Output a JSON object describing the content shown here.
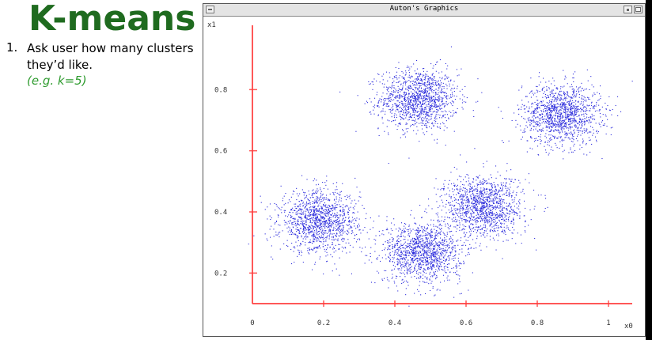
{
  "slide": {
    "title": "K-means",
    "step_number": "1.",
    "step_text": "Ask user how many clusters they’d like.",
    "step_example": "(e.g. k=5)"
  },
  "window": {
    "title": "Auton's Graphics"
  },
  "colors": {
    "title_green": "#1f6b1f",
    "example_green": "#2e9b2e",
    "axis_red": "#ff3b3b",
    "point_blue": "#2b2bdc"
  },
  "icons": [
    "window-menu-icon",
    "minimize-icon",
    "maximize-icon"
  ],
  "chart_data": {
    "type": "scatter",
    "xlabel": "x0",
    "ylabel": "x1",
    "xlim": [
      0,
      1
    ],
    "ylim": [
      0.1,
      1
    ],
    "x_ticks": [
      0,
      0.2,
      0.4,
      0.6,
      0.8,
      1
    ],
    "x_tick_labels": [
      "0",
      "0.2",
      "0.4",
      "0.6",
      "0.8",
      "1"
    ],
    "y_ticks": [
      0.2,
      0.4,
      0.6,
      0.8
    ],
    "y_tick_labels": [
      "0.2",
      "0.4",
      "0.6",
      "0.8"
    ],
    "grid": false,
    "series": [
      {
        "center": [
          0.48,
          0.77
        ],
        "spread": [
          0.055,
          0.05
        ],
        "n": 1300
      },
      {
        "center": [
          0.88,
          0.72
        ],
        "spread": [
          0.055,
          0.05
        ],
        "n": 1300
      },
      {
        "center": [
          0.2,
          0.37
        ],
        "spread": [
          0.055,
          0.05
        ],
        "n": 1300
      },
      {
        "center": [
          0.49,
          0.27
        ],
        "spread": [
          0.055,
          0.05
        ],
        "n": 1300
      },
      {
        "center": [
          0.66,
          0.42
        ],
        "spread": [
          0.055,
          0.05
        ],
        "n": 1300
      }
    ]
  }
}
